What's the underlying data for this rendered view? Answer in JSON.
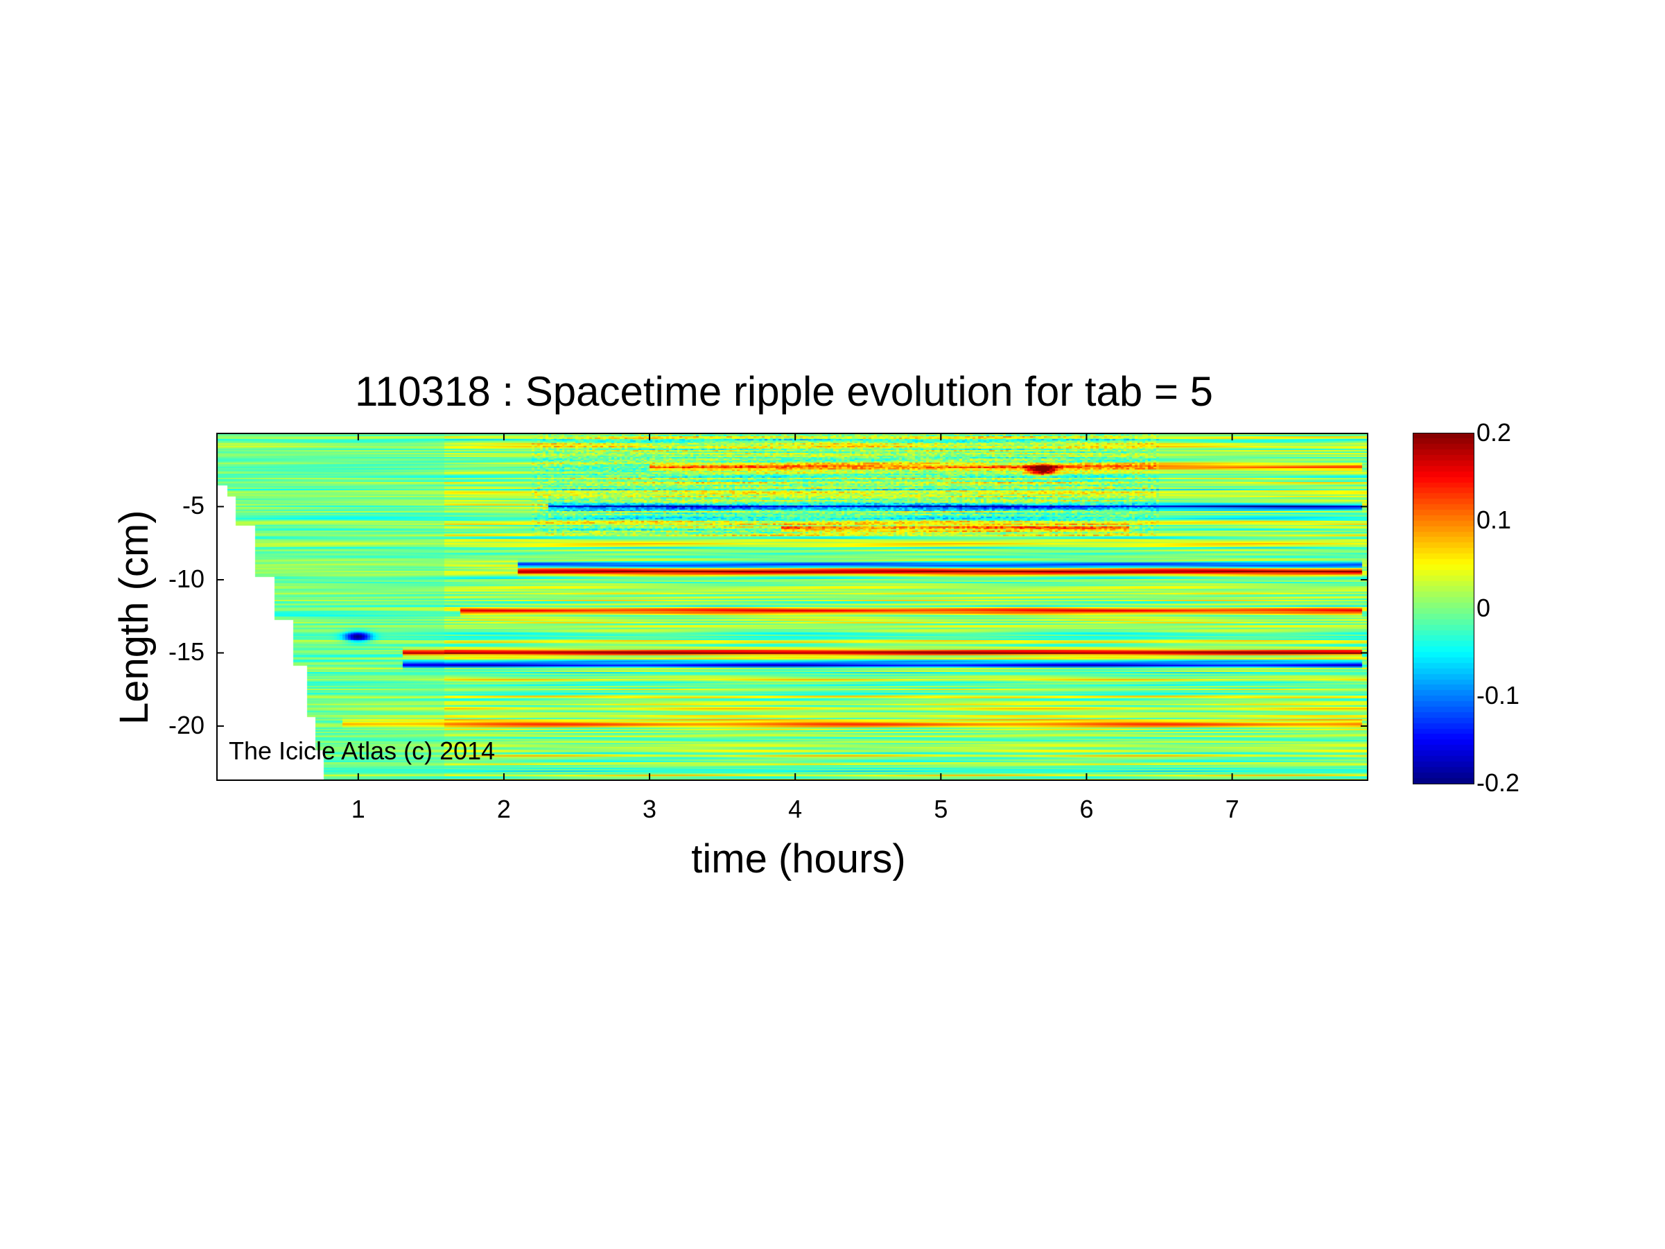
{
  "chart_data": {
    "type": "heatmap",
    "title": "110318 : Spacetime ripple evolution for tab = 5",
    "xlabel": "time (hours)",
    "ylabel": "Length (cm)",
    "annotation": "The Icicle Atlas (c) 2014",
    "colormap": "jet",
    "xlim": [
      0.03,
      7.93
    ],
    "ylim": [
      -23.7,
      0
    ],
    "xticks": [
      1,
      2,
      3,
      4,
      5,
      6,
      7
    ],
    "yticks": [
      -5,
      -10,
      -15,
      -20
    ],
    "colorbar": {
      "range": [
        -0.2,
        0.2
      ],
      "ticks": [
        0.2,
        0.1,
        0,
        -0.1,
        -0.2
      ],
      "tick_labels": [
        "0.2",
        "0.1",
        "0",
        "-0.1",
        "-0.2"
      ]
    },
    "front_boundary": [
      {
        "x": 0.03,
        "y": -3.5
      },
      {
        "x": 0.1,
        "y": -4.3
      },
      {
        "x": 0.17,
        "y": -6.3
      },
      {
        "x": 0.3,
        "y": -9.8
      },
      {
        "x": 0.42,
        "y": -12.7
      },
      {
        "x": 0.55,
        "y": -15.8
      },
      {
        "x": 0.65,
        "y": -19.3
      },
      {
        "x": 0.7,
        "y": -21.6
      },
      {
        "x": 0.77,
        "y": -23.7
      }
    ],
    "persistent_bands": [
      {
        "y": -2.3,
        "sign": "mixed",
        "amplitude": 0.12,
        "t_start": 3.0,
        "t_end": 7.9
      },
      {
        "y": -5.0,
        "sign": "negative",
        "amplitude": -0.15,
        "t_start": 2.3,
        "t_end": 7.9
      },
      {
        "y": -6.5,
        "sign": "positive",
        "amplitude": 0.1,
        "t_start": 3.9,
        "t_end": 6.3
      },
      {
        "y": -9.0,
        "sign": "negative",
        "amplitude": -0.16,
        "t_start": 2.1,
        "t_end": 7.9
      },
      {
        "y": -9.4,
        "sign": "positive",
        "amplitude": 0.16,
        "t_start": 2.1,
        "t_end": 7.9
      },
      {
        "y": -12.2,
        "sign": "positive",
        "amplitude": 0.14,
        "t_start": 1.7,
        "t_end": 7.9
      },
      {
        "y": -15.0,
        "sign": "positive",
        "amplitude": 0.17,
        "t_start": 1.3,
        "t_end": 7.9
      },
      {
        "y": -15.8,
        "sign": "negative",
        "amplitude": -0.14,
        "t_start": 1.3,
        "t_end": 7.9
      },
      {
        "y": -19.8,
        "sign": "positive",
        "amplitude": 0.08,
        "t_start": 0.9,
        "t_end": 7.9
      }
    ],
    "features": [
      {
        "x": 5.7,
        "y": -2.5,
        "value": 0.2
      },
      {
        "x": 1.0,
        "y": -13.9,
        "value": -0.18
      }
    ]
  }
}
